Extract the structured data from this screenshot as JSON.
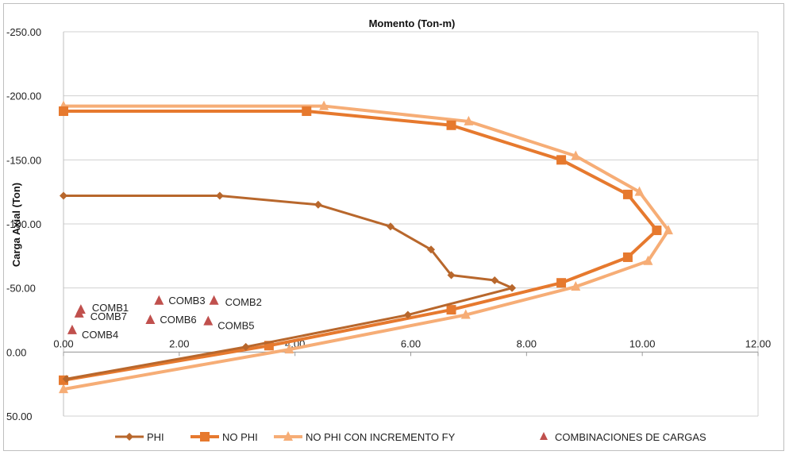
{
  "chart_data": {
    "type": "line",
    "title": "Momento (Ton-m)",
    "xlabel": "",
    "ylabel": "Carga Axial (Ton)",
    "xlim": [
      0,
      12
    ],
    "ylim": [
      -250,
      50
    ],
    "y_reversed": true,
    "x_axis_position": "top",
    "x_ticks": [
      "0.00",
      "2.00",
      "4.00",
      "6.00",
      "8.00",
      "10.00",
      "12.00"
    ],
    "y_ticks": [
      "-250.00",
      "-200.00",
      "-150.00",
      "-100.00",
      "-50.00",
      "0.00",
      "50.00"
    ],
    "grid": true,
    "legend_position": "bottom",
    "series": [
      {
        "name": "PHI",
        "color": "#b8672c",
        "marker": "diamond",
        "x": [
          0.0,
          2.7,
          4.4,
          5.65,
          6.35,
          6.7,
          7.45,
          7.75,
          5.95,
          3.15,
          0.05
        ],
        "y": [
          -122,
          -122,
          -115,
          -98,
          -80,
          -60,
          -56,
          -50,
          -29,
          -4,
          21
        ]
      },
      {
        "name": "NO PHI",
        "color": "#e6792e",
        "marker": "square",
        "x": [
          0.0,
          4.2,
          6.7,
          8.6,
          9.75,
          10.25,
          9.75,
          8.6,
          6.7,
          3.55,
          0.0
        ],
        "y": [
          -188,
          -188,
          -177,
          -150,
          -123,
          -95,
          -74,
          -54,
          -33,
          -5,
          22
        ]
      },
      {
        "name": "NO PHI CON INCREMENTO FY",
        "color": "#f6ad76",
        "marker": "triangle",
        "x": [
          0.0,
          4.5,
          7.0,
          8.85,
          9.95,
          10.45,
          10.1,
          8.85,
          6.95,
          3.9,
          0.0
        ],
        "y": [
          -192,
          -192,
          -180,
          -153,
          -125,
          -95,
          -71,
          -51,
          -29,
          -2,
          29
        ]
      },
      {
        "name": "COMBINACIONES DE CARGAS",
        "color": "#c0504d",
        "marker": "triangle",
        "points": [
          {
            "label": "COMB1",
            "x": 0.3,
            "y": -33
          },
          {
            "label": "COMB2",
            "x": 2.6,
            "y": -40
          },
          {
            "label": "COMB3",
            "x": 1.65,
            "y": -40
          },
          {
            "label": "COMB4",
            "x": 0.15,
            "y": -17
          },
          {
            "label": "COMB5",
            "x": 2.5,
            "y": -24
          },
          {
            "label": "COMB6",
            "x": 1.5,
            "y": -25
          },
          {
            "label": "COMB7",
            "x": 0.27,
            "y": -30
          }
        ]
      }
    ]
  }
}
